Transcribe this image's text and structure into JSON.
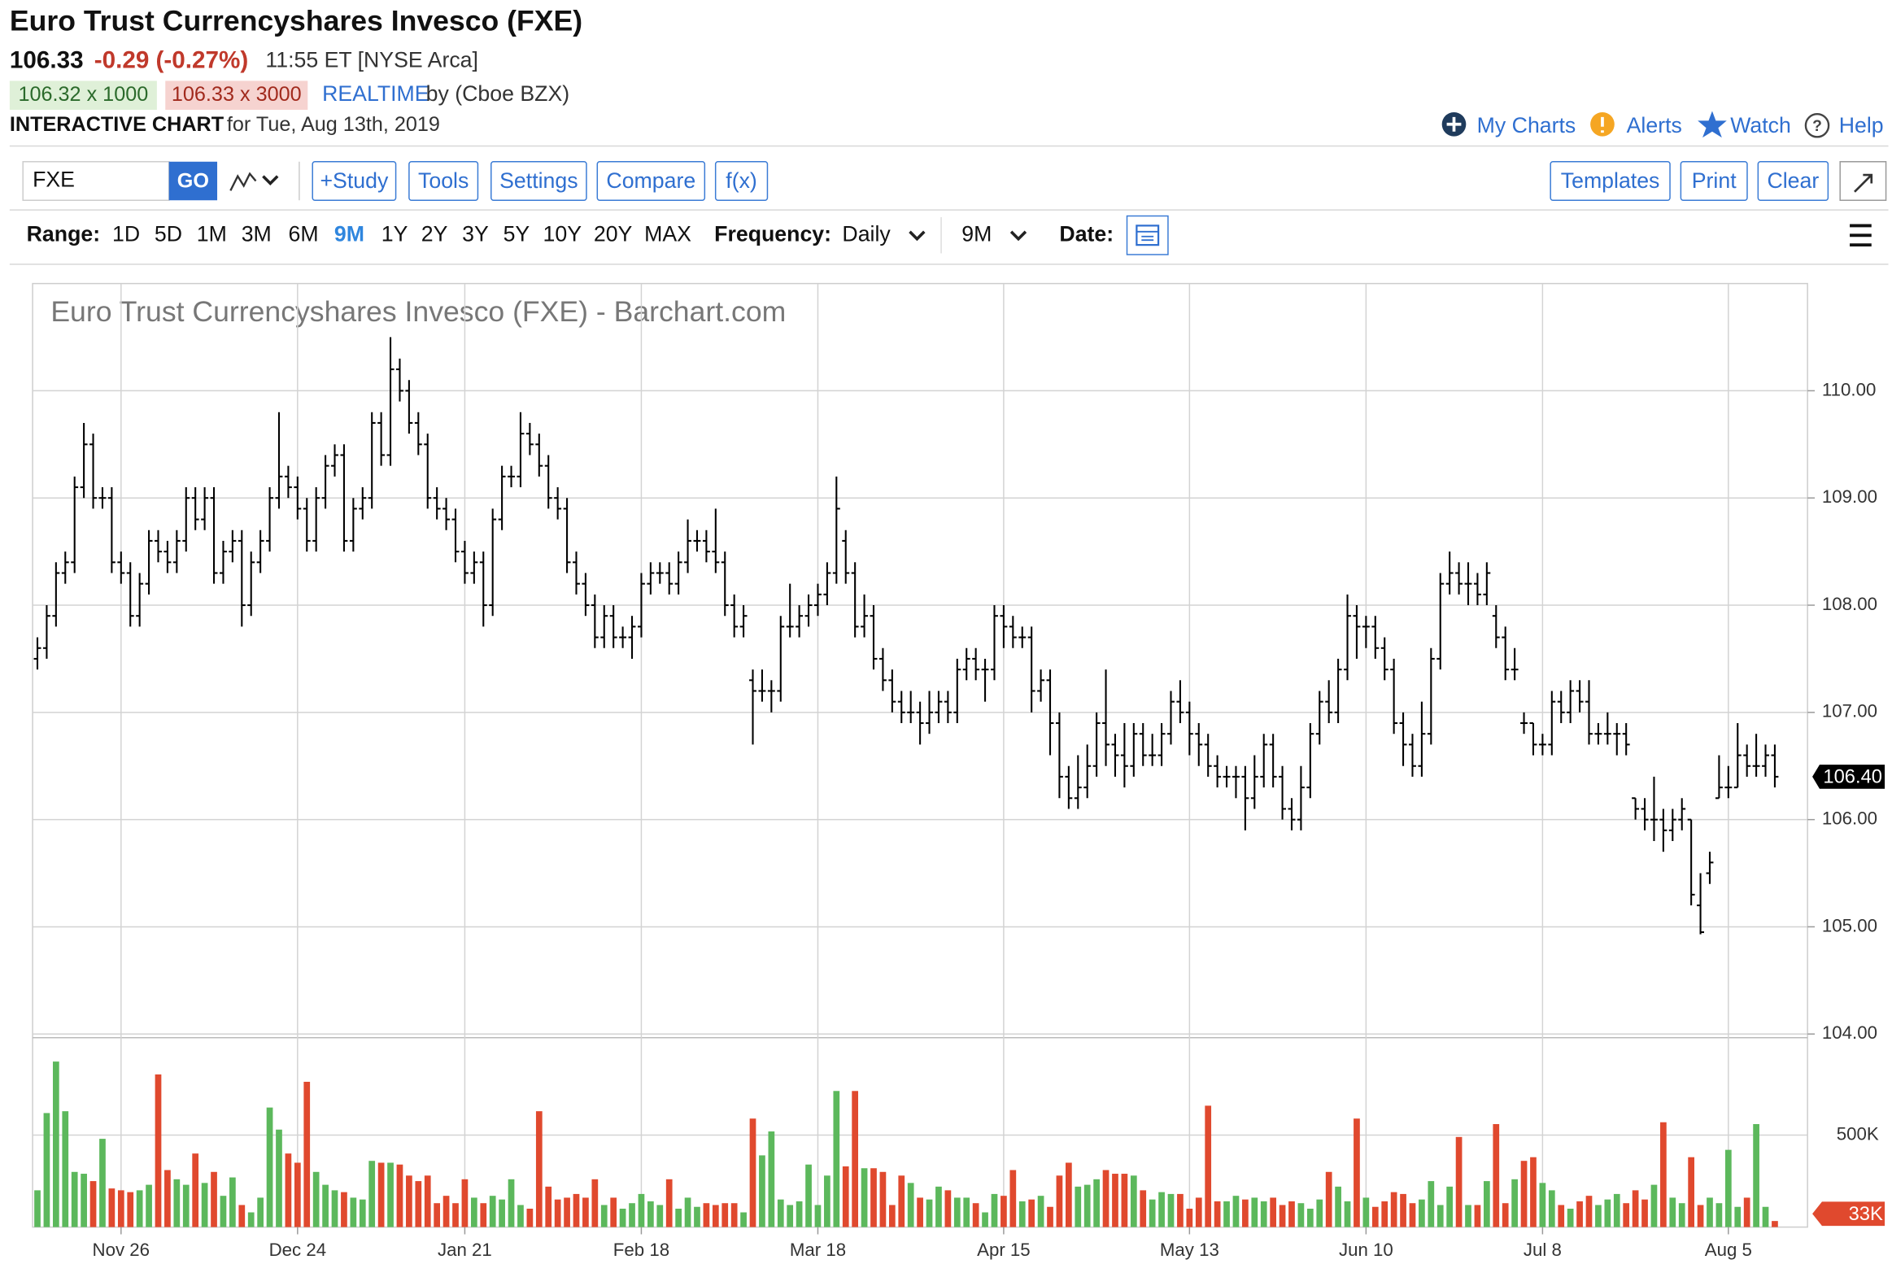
{
  "header": {
    "title": "Euro Trust Currencyshares Invesco (FXE)",
    "last": "106.33",
    "change": "-0.29 (-0.27%)",
    "time": "11:55 ET [NYSE Arca]",
    "bid": "106.32 x 1000",
    "ask": "106.33 x 3000",
    "realtime": "REALTIME",
    "source": "by (Cboe BZX)",
    "chart_label": "INTERACTIVE CHART",
    "date": "for Tue, Aug 13th, 2019"
  },
  "nav": [
    "My Charts",
    "Alerts",
    "Watch",
    "Help"
  ],
  "toolbar": {
    "symbol": "FXE",
    "go": "GO",
    "buttons": [
      "+Study",
      "Tools",
      "Settings",
      "Compare",
      "f(x)"
    ],
    "right_buttons": [
      "Templates",
      "Print",
      "Clear"
    ]
  },
  "range": {
    "label": "Range:",
    "options": [
      "1D",
      "5D",
      "1M",
      "3M",
      "6M",
      "9M",
      "1Y",
      "2Y",
      "3Y",
      "5Y",
      "10Y",
      "20Y",
      "MAX"
    ],
    "active_index": 5
  },
  "frequency": {
    "label": "Frequency:",
    "value": "Daily"
  },
  "period": "9M",
  "date_label": "Date:",
  "chart_data": {
    "type": "ohlc",
    "title": "Euro Trust Currencyshares Invesco (FXE) - Barchart.com",
    "color": "#000000",
    "grid": true,
    "categories": [
      null,
      null,
      null,
      null,
      null,
      null,
      null,
      null,
      null,
      "Nov 26",
      null,
      null,
      null,
      null,
      null,
      null,
      null,
      null,
      null,
      null,
      null,
      null,
      null,
      null,
      null,
      null,
      null,
      null,
      "Dec 24",
      null,
      null,
      null,
      null,
      null,
      null,
      null,
      null,
      null,
      null,
      null,
      null,
      null,
      null,
      null,
      null,
      null,
      "Jan 21",
      null,
      null,
      null,
      null,
      null,
      null,
      null,
      null,
      null,
      null,
      null,
      null,
      null,
      null,
      null,
      null,
      null,
      null,
      "Feb 18",
      null,
      null,
      null,
      null,
      null,
      null,
      null,
      null,
      null,
      null,
      null,
      null,
      null,
      null,
      null,
      null,
      null,
      null,
      "Mar 18",
      null,
      null,
      null,
      null,
      null,
      null,
      null,
      null,
      null,
      null,
      null,
      null,
      null,
      null,
      null,
      null,
      null,
      null,
      null,
      "Apr 15",
      null,
      null,
      null,
      null,
      null,
      null,
      null,
      null,
      null,
      null,
      null,
      null,
      null,
      null,
      null,
      null,
      null,
      null,
      null,
      "May 13",
      null,
      null,
      null,
      null,
      null,
      null,
      null,
      null,
      null,
      null,
      null,
      null,
      null,
      null,
      null,
      null,
      null,
      null,
      "Jun 10",
      null,
      null,
      null,
      null,
      null,
      null,
      null,
      null,
      null,
      null,
      null,
      null,
      null,
      null,
      null,
      null,
      null,
      null,
      "Jul 8",
      null,
      null,
      null,
      null,
      null,
      null,
      null,
      null,
      null,
      null,
      null,
      null,
      null,
      null,
      null,
      null,
      null,
      null,
      null,
      "Aug 5",
      null,
      null,
      null,
      null,
      null
    ],
    "open": [
      107.5,
      107.6,
      107.9,
      108.3,
      108.4,
      109.1,
      109.5,
      109.0,
      109.0,
      108.4,
      108.3,
      107.9,
      108.2,
      108.6,
      108.5,
      108.4,
      108.6,
      109.0,
      108.8,
      109.0,
      108.3,
      108.5,
      108.6,
      108.0,
      108.4,
      108.6,
      109.0,
      109.2,
      109.1,
      108.9,
      108.6,
      109.0,
      109.3,
      109.4,
      108.6,
      108.9,
      109.0,
      109.7,
      109.4,
      110.2,
      110.0,
      109.7,
      109.5,
      109.0,
      108.9,
      108.8,
      108.5,
      108.3,
      108.4,
      108.0,
      108.8,
      109.2,
      109.2,
      109.6,
      109.5,
      109.3,
      109.0,
      108.9,
      108.4,
      108.2,
      108.0,
      107.7,
      107.9,
      107.7,
      107.7,
      107.8,
      108.2,
      108.3,
      108.3,
      108.2,
      108.4,
      108.6,
      108.6,
      108.5,
      108.4,
      108.0,
      107.8,
      107.3,
      107.2,
      107.2,
      107.2,
      107.8,
      107.8,
      107.9,
      108.0,
      108.1,
      108.3,
      108.6,
      108.3,
      107.8,
      107.9,
      107.5,
      107.3,
      107.1,
      107.0,
      107.0,
      106.9,
      107.0,
      107.1,
      107.0,
      107.4,
      107.5,
      107.4,
      107.4,
      107.9,
      107.8,
      107.7,
      107.7,
      107.2,
      107.3,
      106.9,
      106.4,
      106.2,
      106.3,
      106.5,
      106.9,
      106.7,
      106.6,
      106.5,
      106.8,
      106.6,
      106.6,
      106.8,
      107.1,
      107.0,
      106.8,
      106.7,
      106.5,
      106.4,
      106.4,
      106.4,
      106.2,
      106.4,
      106.7,
      106.4,
      106.1,
      106.0,
      106.3,
      106.8,
      107.1,
      107.0,
      107.4,
      107.9,
      107.8,
      107.8,
      107.6,
      107.4,
      106.9,
      106.7,
      106.5,
      106.8,
      107.5,
      108.2,
      108.3,
      108.2,
      108.2,
      108.1,
      107.9,
      107.7,
      107.4,
      106.9,
      106.9,
      106.7,
      106.7,
      107.1,
      107.0,
      107.2,
      107.1,
      106.8,
      106.8,
      106.8,
      106.8,
      106.2,
      106.1,
      106.0,
      106.0,
      105.9,
      106.0,
      106.0,
      105.2,
      105.5,
      106.2,
      106.3,
      106.3,
      106.6,
      106.5,
      106.5,
      106.6
    ],
    "high": [
      107.7,
      108.0,
      108.4,
      108.5,
      109.2,
      109.7,
      109.6,
      109.1,
      109.1,
      108.5,
      108.4,
      108.3,
      108.7,
      108.7,
      108.6,
      108.7,
      109.1,
      109.1,
      109.1,
      109.1,
      108.6,
      108.7,
      108.7,
      108.5,
      108.7,
      109.1,
      109.8,
      109.3,
      109.2,
      109.0,
      109.1,
      109.4,
      109.5,
      109.5,
      109.0,
      109.1,
      109.8,
      109.8,
      110.5,
      110.3,
      110.1,
      109.8,
      109.6,
      109.1,
      109.0,
      108.9,
      108.6,
      108.5,
      108.5,
      108.9,
      109.3,
      109.3,
      109.8,
      109.7,
      109.6,
      109.4,
      109.1,
      109.0,
      108.5,
      108.3,
      108.1,
      108.0,
      108.0,
      107.8,
      107.9,
      108.3,
      108.4,
      108.4,
      108.4,
      108.5,
      108.8,
      108.7,
      108.7,
      108.9,
      108.5,
      108.1,
      108.0,
      107.4,
      107.4,
      107.3,
      107.9,
      108.2,
      108.0,
      108.1,
      108.2,
      108.4,
      109.2,
      108.7,
      108.4,
      108.1,
      108.0,
      107.6,
      107.4,
      107.2,
      107.2,
      107.1,
      107.2,
      107.2,
      107.2,
      107.5,
      107.6,
      107.6,
      107.5,
      108.0,
      108.0,
      107.9,
      107.8,
      107.8,
      107.4,
      107.4,
      107.0,
      106.5,
      106.6,
      106.7,
      107.0,
      107.4,
      106.8,
      106.9,
      106.9,
      106.9,
      106.8,
      106.9,
      107.2,
      107.3,
      107.1,
      106.9,
      106.8,
      106.6,
      106.5,
      106.5,
      106.5,
      106.6,
      106.8,
      106.8,
      106.5,
      106.2,
      106.5,
      106.9,
      107.2,
      107.3,
      107.5,
      108.1,
      108.0,
      107.9,
      107.9,
      107.7,
      107.5,
      107.0,
      106.8,
      107.1,
      107.6,
      108.3,
      108.5,
      108.4,
      108.4,
      108.3,
      108.4,
      108.0,
      107.8,
      107.6,
      107.0,
      106.9,
      106.8,
      107.2,
      107.2,
      107.3,
      107.3,
      107.3,
      106.9,
      107.0,
      106.9,
      106.9,
      106.2,
      106.2,
      106.4,
      106.1,
      106.1,
      106.2,
      106.0,
      105.5,
      105.7,
      106.6,
      106.5,
      106.9,
      106.7,
      106.8,
      106.7,
      106.7
    ],
    "low": [
      107.4,
      107.5,
      107.8,
      108.2,
      108.3,
      109.0,
      108.9,
      108.9,
      108.3,
      108.2,
      107.8,
      107.8,
      108.1,
      108.4,
      108.3,
      108.3,
      108.5,
      108.7,
      108.7,
      108.2,
      108.2,
      108.4,
      107.8,
      107.9,
      108.3,
      108.5,
      108.9,
      109.0,
      108.8,
      108.5,
      108.5,
      108.9,
      109.2,
      108.5,
      108.5,
      108.8,
      108.9,
      109.3,
      109.3,
      109.9,
      109.6,
      109.4,
      108.9,
      108.8,
      108.7,
      108.4,
      108.2,
      108.2,
      107.8,
      107.9,
      108.7,
      109.1,
      109.1,
      109.4,
      109.2,
      108.9,
      108.8,
      108.3,
      108.1,
      107.9,
      107.6,
      107.6,
      107.6,
      107.6,
      107.5,
      107.7,
      108.1,
      108.2,
      108.1,
      108.1,
      108.3,
      108.5,
      108.4,
      108.3,
      107.9,
      107.7,
      107.7,
      106.7,
      107.1,
      107.0,
      107.1,
      107.7,
      107.7,
      107.8,
      107.9,
      108.0,
      108.2,
      108.2,
      107.7,
      107.7,
      107.4,
      107.2,
      107.0,
      106.9,
      106.9,
      106.7,
      106.8,
      106.9,
      106.9,
      106.9,
      107.3,
      107.3,
      107.1,
      107.3,
      107.6,
      107.6,
      107.6,
      107.0,
      107.1,
      106.6,
      106.2,
      106.1,
      106.1,
      106.2,
      106.4,
      106.5,
      106.4,
      106.3,
      106.4,
      106.5,
      106.5,
      106.5,
      106.7,
      106.9,
      106.6,
      106.5,
      106.4,
      106.3,
      106.3,
      106.2,
      105.9,
      106.1,
      106.3,
      106.3,
      106.0,
      105.9,
      105.9,
      106.2,
      106.7,
      106.9,
      106.9,
      107.3,
      107.5,
      107.6,
      107.5,
      107.3,
      106.8,
      106.5,
      106.4,
      106.4,
      106.7,
      107.4,
      108.1,
      108.1,
      108.0,
      108.0,
      108.0,
      107.6,
      107.3,
      107.3,
      106.8,
      106.6,
      106.6,
      106.6,
      106.9,
      106.9,
      107.0,
      106.7,
      106.7,
      106.7,
      106.6,
      106.6,
      106.0,
      105.9,
      105.8,
      105.7,
      105.8,
      105.9,
      105.2,
      104.93,
      105.4,
      106.2,
      106.2,
      106.3,
      106.4,
      106.4,
      106.4,
      106.3
    ],
    "close": [
      107.6,
      107.9,
      108.3,
      108.4,
      109.1,
      109.5,
      109.0,
      109.0,
      108.4,
      108.3,
      107.9,
      108.2,
      108.6,
      108.5,
      108.4,
      108.6,
      109.0,
      108.8,
      109.0,
      108.3,
      108.5,
      108.6,
      108.0,
      108.4,
      108.6,
      109.0,
      109.2,
      109.1,
      108.9,
      108.6,
      109.0,
      109.3,
      109.4,
      108.6,
      108.9,
      109.0,
      109.7,
      109.4,
      110.2,
      110.0,
      109.7,
      109.5,
      109.0,
      108.9,
      108.8,
      108.5,
      108.3,
      108.4,
      108.0,
      108.8,
      109.2,
      109.2,
      109.6,
      109.5,
      109.3,
      109.0,
      108.9,
      108.4,
      108.2,
      108.0,
      107.7,
      107.9,
      107.7,
      107.7,
      107.8,
      108.2,
      108.3,
      108.3,
      108.2,
      108.4,
      108.6,
      108.6,
      108.5,
      108.4,
      108.0,
      107.8,
      107.9,
      107.2,
      107.2,
      107.2,
      107.8,
      107.8,
      107.9,
      108.0,
      108.1,
      108.3,
      108.9,
      108.3,
      107.8,
      107.9,
      107.5,
      107.3,
      107.1,
      107.0,
      107.0,
      106.9,
      107.0,
      107.1,
      107.0,
      107.4,
      107.5,
      107.4,
      107.4,
      107.9,
      107.8,
      107.7,
      107.7,
      107.2,
      107.3,
      106.9,
      106.4,
      106.2,
      106.3,
      106.5,
      106.9,
      106.7,
      106.6,
      106.5,
      106.8,
      106.6,
      106.6,
      106.8,
      107.1,
      107.0,
      106.8,
      106.7,
      106.5,
      106.4,
      106.4,
      106.4,
      106.2,
      106.4,
      106.7,
      106.4,
      106.1,
      106.0,
      106.3,
      106.8,
      107.1,
      107.0,
      107.4,
      107.9,
      107.8,
      107.8,
      107.6,
      107.4,
      106.9,
      106.7,
      106.5,
      106.8,
      107.5,
      108.2,
      108.3,
      108.2,
      108.2,
      108.1,
      108.3,
      107.7,
      107.4,
      107.4,
      106.9,
      106.7,
      106.7,
      107.1,
      107.0,
      107.2,
      107.1,
      106.8,
      106.8,
      106.8,
      106.8,
      106.7,
      106.1,
      106.0,
      106.0,
      105.9,
      106.0,
      106.1,
      105.3,
      104.95,
      105.6,
      106.3,
      106.3,
      106.6,
      106.5,
      106.5,
      106.6,
      106.4
    ],
    "ylim": [
      104,
      111
    ],
    "yticks": [
      {
        "value": 104,
        "label": "104.00"
      },
      {
        "value": 105,
        "label": "105.00"
      },
      {
        "value": 106,
        "label": "106.00"
      },
      {
        "value": 107,
        "label": "107.00"
      },
      {
        "value": 108,
        "label": "108.00"
      },
      {
        "value": 109,
        "label": "109.00"
      },
      {
        "value": 110,
        "label": "110.00"
      }
    ],
    "last_price": {
      "value": 106.4,
      "label": "106.40"
    },
    "volume": {
      "up_color": "#5cb85c",
      "down_color": "#e0492e",
      "ylim": [
        0,
        1030000
      ],
      "yticks": [
        {
          "value": 500000,
          "label": "500K"
        }
      ],
      "last": {
        "value": 33000,
        "label": "33K"
      },
      "values": [
        200000,
        620000,
        900000,
        630000,
        300000,
        290000,
        250000,
        480000,
        210000,
        200000,
        190000,
        200000,
        230000,
        830000,
        310000,
        260000,
        230000,
        400000,
        240000,
        300000,
        170000,
        270000,
        120000,
        80000,
        160000,
        650000,
        530000,
        400000,
        350000,
        790000,
        300000,
        230000,
        200000,
        190000,
        160000,
        150000,
        360000,
        350000,
        350000,
        340000,
        280000,
        250000,
        280000,
        130000,
        170000,
        130000,
        260000,
        160000,
        130000,
        170000,
        150000,
        260000,
        120000,
        100000,
        630000,
        220000,
        150000,
        160000,
        180000,
        160000,
        260000,
        120000,
        160000,
        100000,
        130000,
        180000,
        140000,
        120000,
        260000,
        100000,
        160000,
        110000,
        130000,
        120000,
        130000,
        130000,
        80000,
        590000,
        390000,
        520000,
        150000,
        120000,
        140000,
        340000,
        120000,
        280000,
        740000,
        330000,
        740000,
        320000,
        320000,
        300000,
        120000,
        280000,
        240000,
        160000,
        150000,
        220000,
        200000,
        160000,
        160000,
        130000,
        80000,
        180000,
        170000,
        310000,
        140000,
        150000,
        170000,
        110000,
        280000,
        350000,
        220000,
        230000,
        260000,
        310000,
        290000,
        290000,
        280000,
        200000,
        150000,
        190000,
        180000,
        180000,
        100000,
        160000,
        660000,
        140000,
        140000,
        170000,
        150000,
        160000,
        140000,
        160000,
        120000,
        140000,
        130000,
        100000,
        150000,
        300000,
        220000,
        140000,
        590000,
        160000,
        110000,
        140000,
        190000,
        180000,
        130000,
        150000,
        250000,
        120000,
        220000,
        490000,
        120000,
        120000,
        250000,
        560000,
        130000,
        260000,
        360000,
        380000,
        240000,
        200000,
        120000,
        100000,
        140000,
        170000,
        120000,
        150000,
        180000,
        130000,
        200000,
        150000,
        230000,
        570000,
        160000,
        130000,
        380000,
        120000,
        160000,
        130000,
        420000,
        110000,
        160000,
        560000,
        110000,
        33000
      ]
    }
  }
}
